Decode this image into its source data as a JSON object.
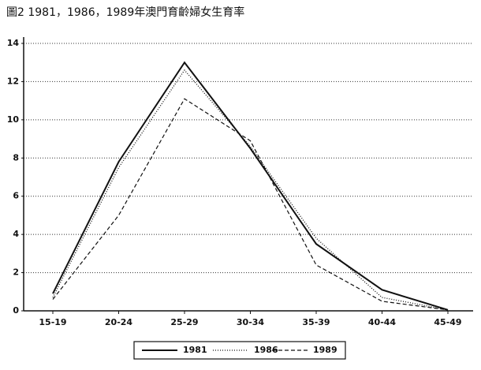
{
  "chart_data": {
    "type": "line",
    "title": "圖2 1981，1986，1989年澳門育齡婦女生育率",
    "categories": [
      "15-19",
      "20-24",
      "25-29",
      "30-34",
      "35-39",
      "40-44",
      "45-49"
    ],
    "series": [
      {
        "name": "1981",
        "color": "#111111",
        "dash": "none",
        "width": 2,
        "values": [
          0.9,
          7.8,
          13.0,
          8.5,
          3.5,
          1.1,
          0.05
        ]
      },
      {
        "name": "1986",
        "color": "#111111",
        "dash": "1 2",
        "width": 1.3,
        "values": [
          0.7,
          7.5,
          12.6,
          8.6,
          3.8,
          0.7,
          0.05
        ]
      },
      {
        "name": "1989",
        "color": "#111111",
        "dash": "5 3",
        "width": 1.2,
        "values": [
          0.6,
          5.0,
          11.1,
          8.9,
          2.4,
          0.5,
          0.05
        ]
      }
    ],
    "ylim": [
      0,
      14
    ],
    "yticks": [
      0,
      2,
      4,
      6,
      8,
      10,
      12,
      14
    ],
    "grid": true,
    "legend": "bottom"
  }
}
